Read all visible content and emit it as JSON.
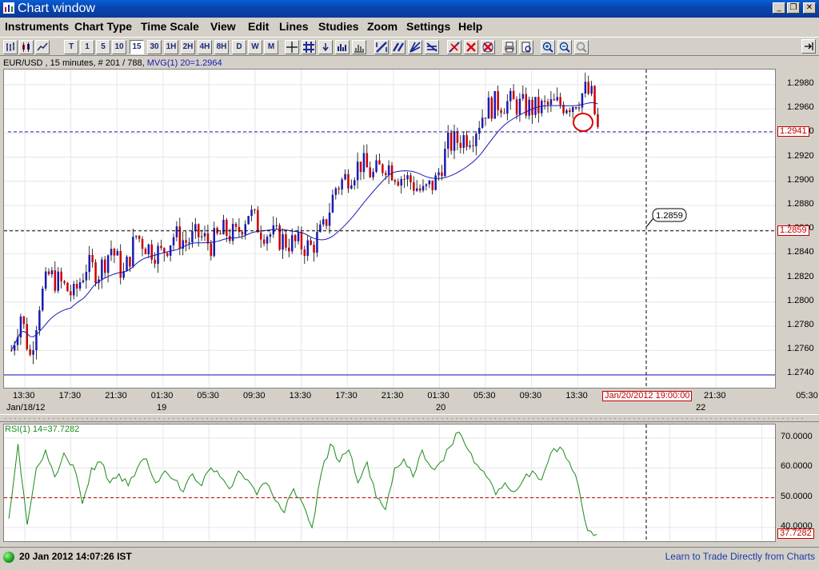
{
  "window": {
    "title": "Chart window"
  },
  "menu": [
    "Instruments",
    "Chart Type",
    "Time Scale",
    "View",
    "Edit",
    "Lines",
    "Studies",
    "Zoom",
    "Settings",
    "Help"
  ],
  "toolbar": {
    "timeframes": [
      "T",
      "1",
      "5",
      "10",
      "15",
      "30",
      "1H",
      "2H",
      "4H",
      "8H",
      "D",
      "W",
      "M"
    ],
    "active_timeframe": "15"
  },
  "main": {
    "info": "EUR/USD , 15 minutes, # 201 / 788,",
    "mvg_label": "MVG(1) 20=1.2964",
    "y_ticks": [
      "1.2980",
      "1.2960",
      "1.2940",
      "1.2920",
      "1.2900",
      "1.2880",
      "1.2860",
      "1.2840",
      "1.2820",
      "1.2800",
      "1.2780",
      "1.2760",
      "1.2740"
    ],
    "current_price": "1.2941",
    "hline_price": "1.2859",
    "hline_label": "1.2859",
    "x_ticks": [
      "13:30",
      "17:30",
      "21:30",
      "01:30",
      "05:30",
      "09:30",
      "13:30",
      "17:30",
      "21:30",
      "01:30",
      "05:30",
      "09:30",
      "13:30",
      "21:30",
      "05:30"
    ],
    "x_dates": [
      "Jan/18/12",
      "19",
      "20",
      "22"
    ],
    "cursor_date": "Jan/20/2012 19:00:00"
  },
  "rsi": {
    "label": "RSI(1) 14=37.7282",
    "y_ticks": [
      "70.0000",
      "60.0000",
      "50.0000",
      "40.0000"
    ],
    "current": "37.7282"
  },
  "status": {
    "datetime": "20 Jan 2012 14:07:26 IST",
    "link": "Learn to Trade Directly from Charts"
  },
  "colors": {
    "up_candle": "#1a1ab4",
    "down_candle": "#cc0000",
    "ma_line": "#1a1ab4",
    "rsi_line": "#1a8a1a",
    "price_box": "#c00000"
  },
  "chart_data": [
    {
      "type": "candlestick",
      "title": "EUR/USD , 15 minutes",
      "ylim": [
        1.2735,
        1.2987
      ],
      "moving_average_last": 1.2964,
      "current_price": 1.2941,
      "horizontal_line": 1.2859,
      "approx_close_path": [
        [
          0,
          1.276
        ],
        [
          3,
          1.279
        ],
        [
          6,
          1.2755
        ],
        [
          9,
          1.28
        ],
        [
          12,
          1.2822
        ],
        [
          16,
          1.2815
        ],
        [
          20,
          1.2805
        ],
        [
          24,
          1.283
        ],
        [
          28,
          1.2825
        ],
        [
          32,
          1.2845
        ],
        [
          36,
          1.2822
        ],
        [
          40,
          1.2855
        ],
        [
          44,
          1.2845
        ],
        [
          48,
          1.284
        ],
        [
          52,
          1.2855
        ],
        [
          56,
          1.285
        ],
        [
          60,
          1.2855
        ],
        [
          64,
          1.2848
        ],
        [
          68,
          1.2858
        ],
        [
          72,
          1.2855
        ],
        [
          76,
          1.2875
        ],
        [
          80,
          1.286
        ],
        [
          84,
          1.2855
        ],
        [
          88,
          1.285
        ],
        [
          92,
          1.2848
        ],
        [
          96,
          1.2845
        ],
        [
          100,
          1.286
        ],
        [
          104,
          1.2895
        ],
        [
          108,
          1.2905
        ],
        [
          112,
          1.2915
        ],
        [
          116,
          1.2905
        ],
        [
          120,
          1.2915
        ],
        [
          124,
          1.2905
        ],
        [
          128,
          1.29
        ],
        [
          132,
          1.289
        ],
        [
          136,
          1.29
        ],
        [
          140,
          1.293
        ],
        [
          144,
          1.2935
        ],
        [
          148,
          1.294
        ],
        [
          152,
          1.296
        ],
        [
          156,
          1.2965
        ],
        [
          160,
          1.2965
        ],
        [
          164,
          1.2962
        ],
        [
          168,
          1.296
        ],
        [
          172,
          1.2962
        ],
        [
          176,
          1.2964
        ],
        [
          180,
          1.2965
        ],
        [
          184,
          1.2975
        ],
        [
          186,
          1.297
        ],
        [
          188,
          1.2942
        ]
      ]
    },
    {
      "type": "line",
      "title": "RSI(1) 14",
      "ylim": [
        35,
        72
      ],
      "reference_line": 50,
      "values": [
        43,
        68,
        41,
        60,
        66,
        57,
        65,
        61,
        48,
        60,
        62,
        55,
        58,
        54,
        60,
        63,
        55,
        59,
        56,
        52,
        58,
        54,
        60,
        57,
        53,
        59,
        56,
        51,
        55,
        49,
        45,
        53,
        48,
        40,
        58,
        68,
        62,
        66,
        55,
        62,
        50,
        46,
        60,
        63,
        57,
        66,
        60,
        62,
        67,
        72,
        66,
        61,
        57,
        51,
        55,
        52,
        56,
        59,
        56,
        65,
        67,
        62,
        54,
        39,
        37.7282
      ]
    }
  ]
}
